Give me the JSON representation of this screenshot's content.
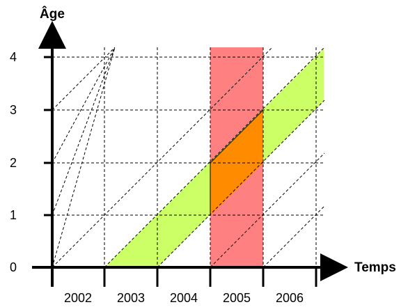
{
  "diagram": {
    "y_axis_title": "Âge",
    "x_axis_title": "Temps",
    "y_ticks": [
      "0",
      "1",
      "2",
      "3",
      "4"
    ],
    "year_labels": [
      "2002",
      "2003",
      "2004",
      "2005",
      "2006"
    ],
    "colors": {
      "cohort_band": "#ccff66",
      "period_column": "#ff8080",
      "intersection": "#ff8c00",
      "grid": "#000000",
      "axis": "#000000"
    },
    "highlights": {
      "period_year": "2005",
      "cohort_birth_years": "2003",
      "intersection_age_range": [
        1,
        3
      ]
    }
  }
}
